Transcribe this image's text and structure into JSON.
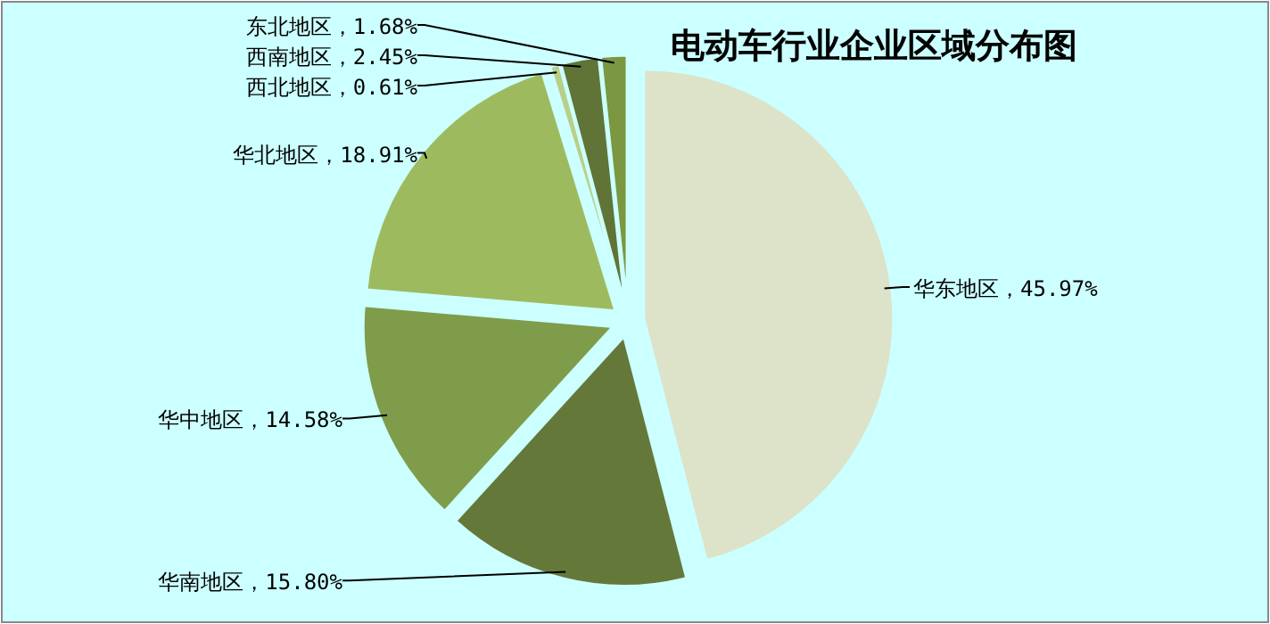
{
  "chart_data": {
    "type": "pie",
    "title": "电动车行业企业区域分布图",
    "categories": [
      "华东地区",
      "华南地区",
      "华中地区",
      "华北地区",
      "西北地区",
      "西南地区",
      "东北地区"
    ],
    "values": [
      45.97,
      15.8,
      14.58,
      18.91,
      0.61,
      2.45,
      1.68
    ],
    "colors": [
      "#dce3c8",
      "#64783a",
      "#7f9c4a",
      "#9dbb5e",
      "#b9cf88",
      "#5f7436",
      "#7b9742"
    ],
    "value_labels": [
      "，45.97%",
      "，15.80%",
      "，14.58%",
      "，18.91%",
      "，0.61%",
      "，2.45%",
      "，1.68%"
    ]
  }
}
